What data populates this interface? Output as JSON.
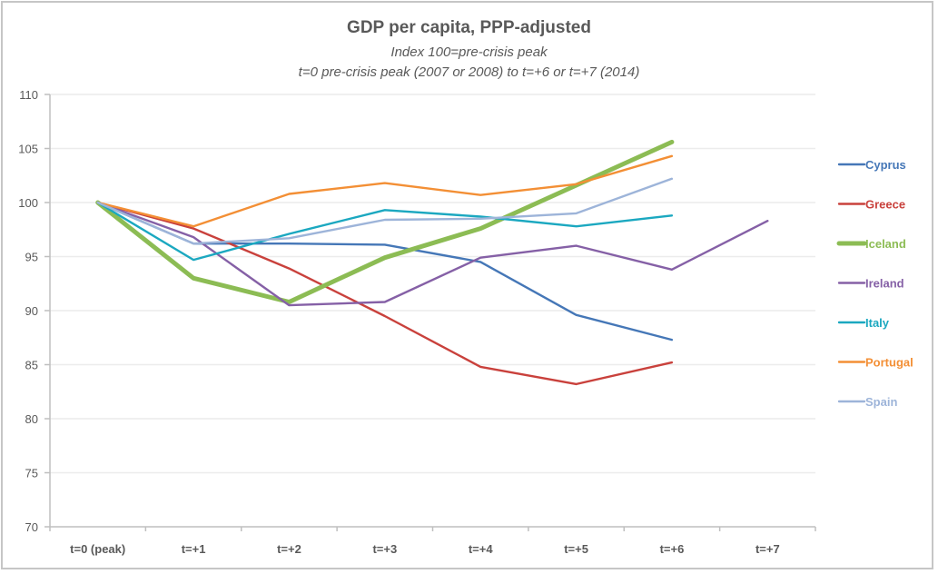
{
  "chart_data": {
    "type": "line",
    "title": "GDP per capita, PPP-adjusted",
    "subtitle_lines": [
      "Index 100=pre-crisis peak",
      "t=0 pre-crisis peak (2007 or 2008) to t=+6 or t=+7 (2014)"
    ],
    "xlabel": "",
    "ylabel": "",
    "categories": [
      "t=0 (peak)",
      "t=+1",
      "t=+2",
      "t=+3",
      "t=+4",
      "t=+5",
      "t=+6",
      "t=+7"
    ],
    "ylim": [
      70,
      110
    ],
    "yticks": [
      70,
      75,
      80,
      85,
      90,
      95,
      100,
      105,
      110
    ],
    "grid": true,
    "legend_position": "right",
    "series": [
      {
        "name": "Cyprus",
        "color": "#4577b7",
        "emphasis": false,
        "values": [
          100,
          96.2,
          96.2,
          96.1,
          94.5,
          89.6,
          87.3,
          null
        ]
      },
      {
        "name": "Greece",
        "color": "#c9413c",
        "emphasis": false,
        "values": [
          100,
          97.6,
          93.9,
          89.5,
          84.8,
          83.2,
          85.2,
          null
        ]
      },
      {
        "name": "Iceland",
        "color": "#8cbc54",
        "emphasis": true,
        "values": [
          100,
          93.0,
          90.8,
          94.9,
          97.6,
          101.6,
          105.6,
          null
        ]
      },
      {
        "name": "Ireland",
        "color": "#8560a6",
        "emphasis": false,
        "values": [
          100,
          96.8,
          90.5,
          90.8,
          94.9,
          96.0,
          93.8,
          98.3
        ]
      },
      {
        "name": "Italy",
        "color": "#1ba8c0",
        "emphasis": false,
        "values": [
          100,
          94.7,
          97.1,
          99.3,
          98.7,
          97.8,
          98.8,
          null
        ]
      },
      {
        "name": "Portugal",
        "color": "#f38f35",
        "emphasis": false,
        "values": [
          100,
          97.8,
          100.8,
          101.8,
          100.7,
          101.7,
          104.3,
          null
        ]
      },
      {
        "name": "Spain",
        "color": "#9db4d9",
        "emphasis": false,
        "values": [
          100,
          96.2,
          96.7,
          98.4,
          98.5,
          99.0,
          102.2,
          null
        ]
      }
    ]
  }
}
